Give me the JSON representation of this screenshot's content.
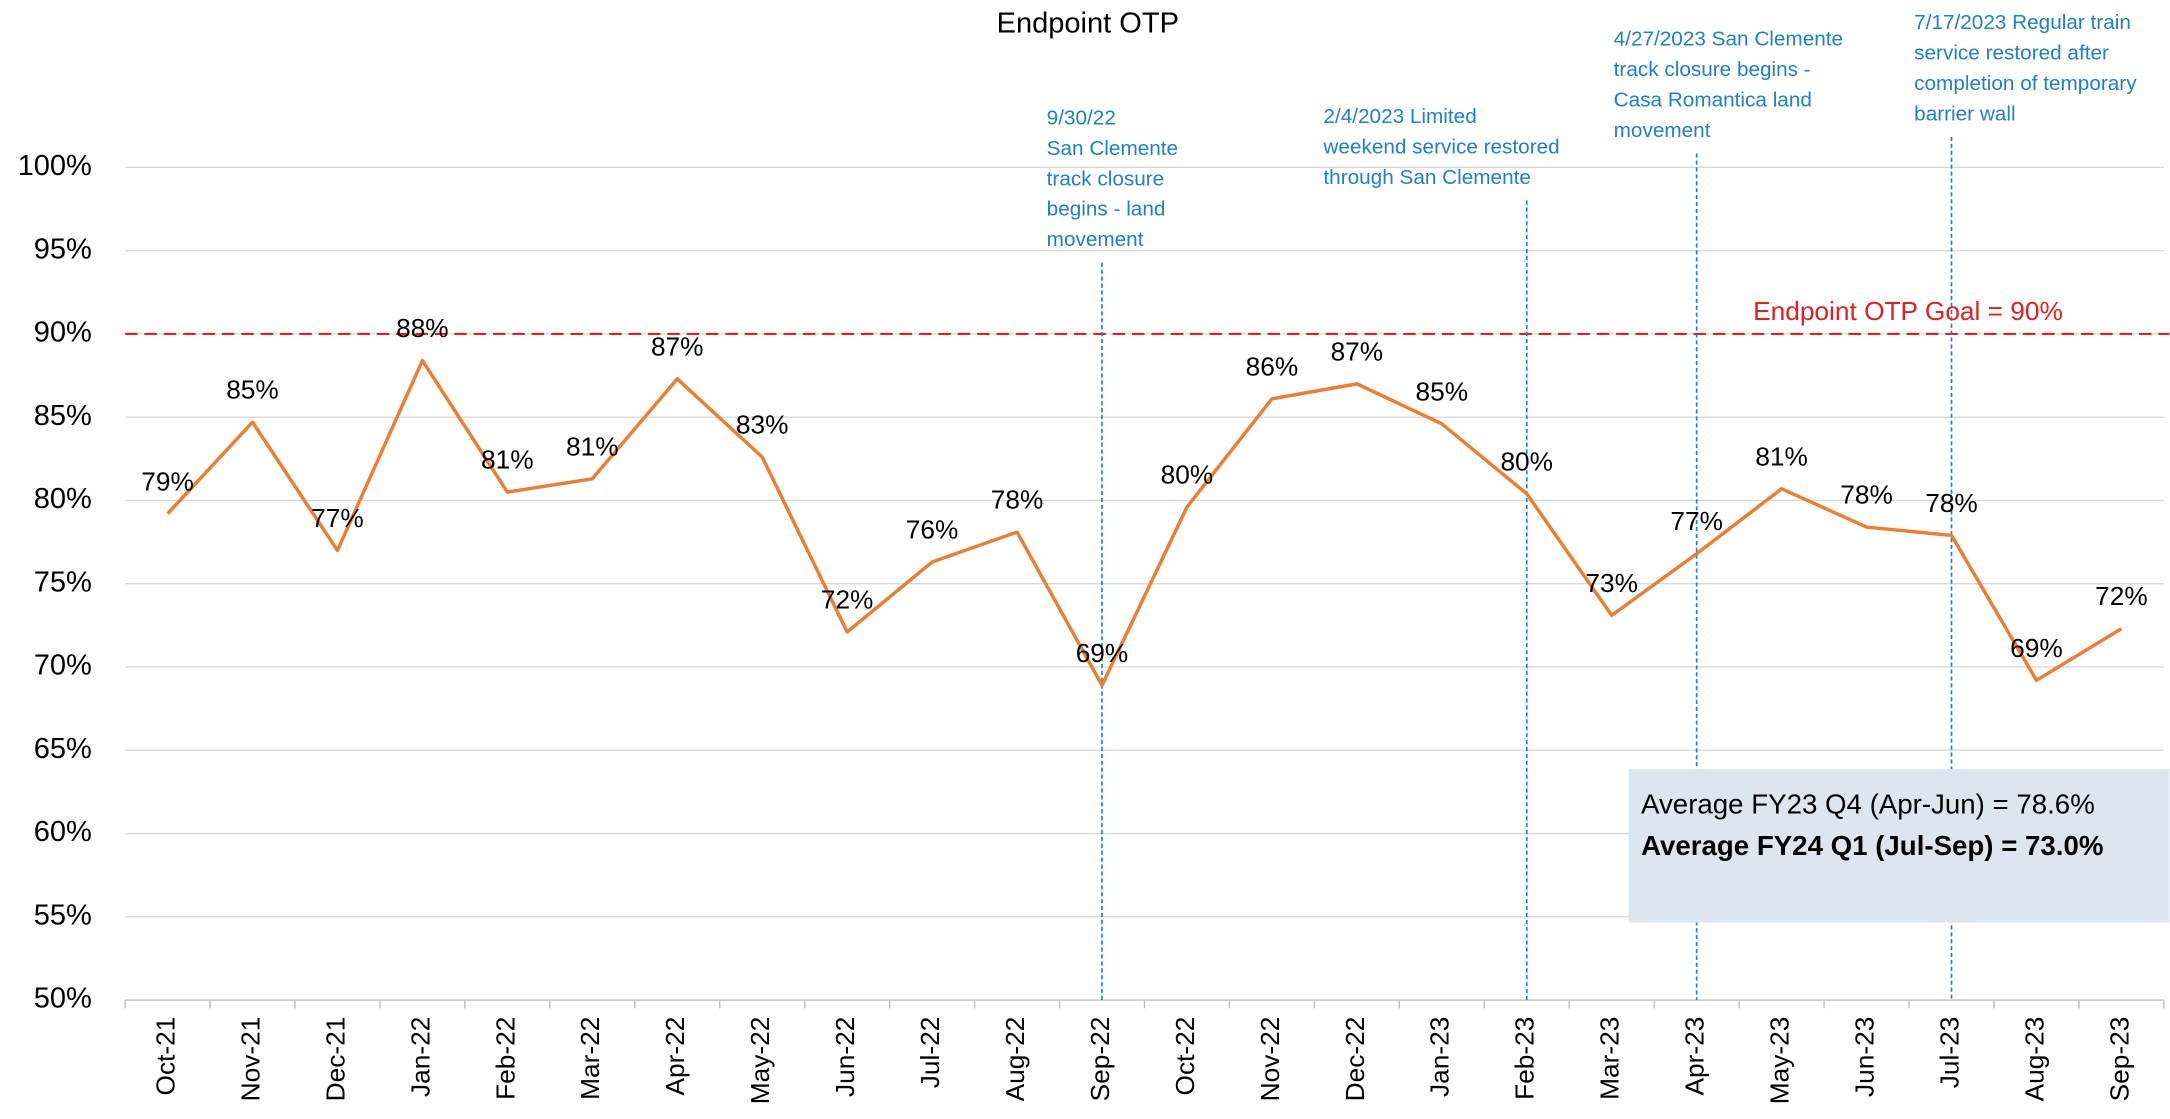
{
  "chart_data": {
    "type": "line",
    "title": "Endpoint OTP",
    "categories": [
      "Oct-21",
      "Nov-21",
      "Dec-21",
      "Jan-22",
      "Feb-22",
      "Mar-22",
      "Apr-22",
      "May-22",
      "Jun-22",
      "Jul-22",
      "Aug-22",
      "Sep-22",
      "Oct-22",
      "Nov-22",
      "Dec-22",
      "Jan-23",
      "Feb-23",
      "Mar-23",
      "Apr-23",
      "May-23",
      "Jun-23",
      "Jul-23",
      "Aug-23",
      "Sep-23"
    ],
    "series": [
      {
        "name": "Endpoint OTP",
        "color": "#ed7d31",
        "values": [
          79.2,
          84.7,
          77.0,
          88.4,
          80.5,
          81.3,
          87.3,
          82.6,
          72.1,
          76.3,
          78.1,
          68.9,
          79.6,
          86.1,
          87.0,
          84.6,
          80.4,
          73.1,
          76.8,
          80.7,
          78.4,
          77.9,
          69.2,
          72.3
        ],
        "value_labels": [
          "79%",
          "85%",
          "77%",
          "88%",
          "81%",
          "81%",
          "87%",
          "83%",
          "72%",
          "76%",
          "78%",
          "69%",
          "80%",
          "86%",
          "87%",
          "85%",
          "80%",
          "73%",
          "77%",
          "81%",
          "78%",
          "78%",
          "69%",
          "72%"
        ]
      }
    ],
    "ylim": [
      50,
      100
    ],
    "yticks": [
      {
        "value": 50,
        "label": "50%"
      },
      {
        "value": 55,
        "label": "55%"
      },
      {
        "value": 60,
        "label": "60%"
      },
      {
        "value": 65,
        "label": "65%"
      },
      {
        "value": 70,
        "label": "70%"
      },
      {
        "value": 75,
        "label": "75%"
      },
      {
        "value": 80,
        "label": "80%"
      },
      {
        "value": 85,
        "label": "85%"
      },
      {
        "value": 90,
        "label": "90%"
      },
      {
        "value": 95,
        "label": "95%"
      },
      {
        "value": 100,
        "label": "100%"
      }
    ],
    "grid": true,
    "goal": {
      "value": 90,
      "label": "Endpoint OTP Goal = 90%",
      "color": "#e02020"
    },
    "annotations": [
      {
        "x": "Sep-22",
        "lines": [
          "9/30/22",
          "San Clemente",
          "track closure",
          "begins - land",
          "movement"
        ]
      },
      {
        "x": "Feb-23",
        "lines": [
          "2/4/2023 Limited",
          "weekend service restored",
          "through San Clemente"
        ]
      },
      {
        "x": "Apr-23",
        "lines": [
          "4/27/2023 San Clemente",
          "track closure begins -",
          "Casa Romantica land",
          "movement"
        ]
      },
      {
        "x": "Jul-23",
        "lines": [
          "7/17/2023 Regular train",
          "service restored after",
          "completion of temporary",
          "barrier wall"
        ]
      }
    ],
    "annotation_color": "#1f7fc7",
    "summary": [
      "Average FY23 Q4 (Apr-Jun) = 78.6%",
      "Average FY24 Q1 (Jul-Sep) = 73.0%"
    ]
  }
}
